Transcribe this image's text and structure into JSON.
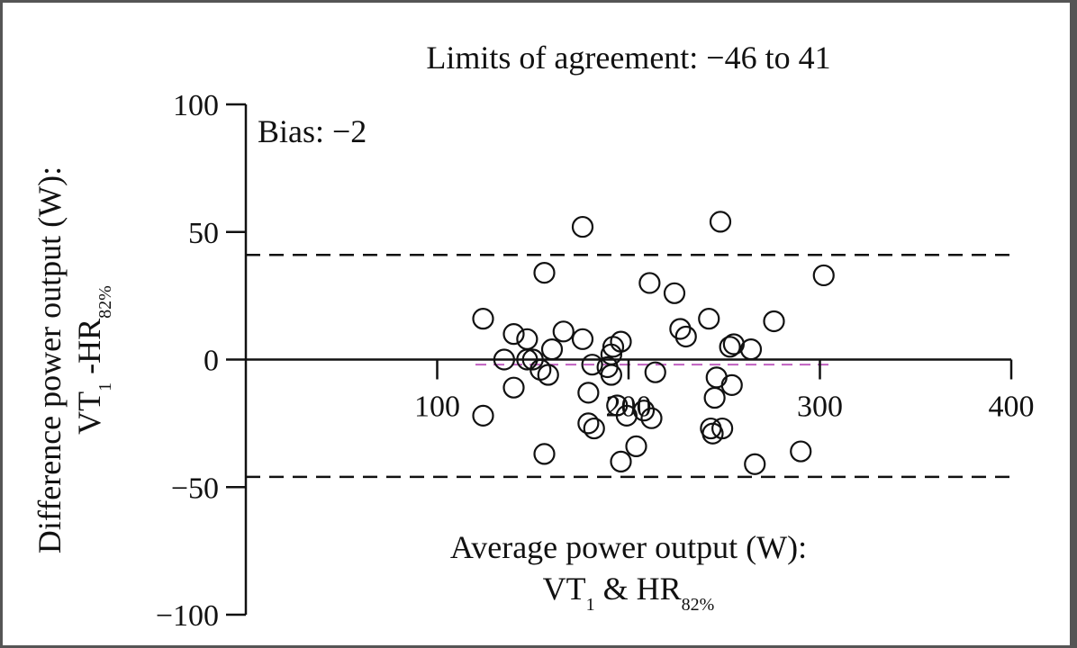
{
  "chart_data": {
    "type": "scatter",
    "title": "Limits of agreement: −46 to 41",
    "bias_label": "Bias: −2",
    "bias": -2,
    "limits": [
      -46,
      41
    ],
    "xlabel_line1": "Average power output (W):",
    "xlabel_line2": {
      "a": "VT",
      "a_sub": "1",
      "b": " & HR",
      "b_sub": "82%"
    },
    "ylabel_line1": "Difference power output (W):",
    "ylabel_line2": {
      "a": "VT",
      "a_sub": "1",
      "b": " -HR",
      "b_sub": "82%"
    },
    "xlim": [
      0,
      400
    ],
    "ylim": [
      -100,
      100
    ],
    "x_ticks": [
      100,
      200,
      300,
      400
    ],
    "x_tick_labels": [
      "100",
      "200",
      "300",
      "400"
    ],
    "y_ticks": [
      -100,
      -50,
      0,
      50,
      100
    ],
    "y_tick_labels": [
      "−100",
      "−50",
      "0",
      "50",
      "100"
    ],
    "colors": {
      "points": "#111111",
      "bias_line": "#c060c0",
      "limit_lines": "#111111"
    },
    "points": [
      {
        "x": 124,
        "y": 16
      },
      {
        "x": 124,
        "y": -22
      },
      {
        "x": 135,
        "y": 0
      },
      {
        "x": 140,
        "y": 10
      },
      {
        "x": 140,
        "y": -11
      },
      {
        "x": 147,
        "y": 8
      },
      {
        "x": 147,
        "y": 0
      },
      {
        "x": 150,
        "y": 0
      },
      {
        "x": 154,
        "y": -4
      },
      {
        "x": 156,
        "y": 34
      },
      {
        "x": 156,
        "y": -37
      },
      {
        "x": 158,
        "y": -6
      },
      {
        "x": 160,
        "y": 4
      },
      {
        "x": 166,
        "y": 11
      },
      {
        "x": 176,
        "y": 52
      },
      {
        "x": 176,
        "y": 8
      },
      {
        "x": 179,
        "y": -13
      },
      {
        "x": 179,
        "y": -25
      },
      {
        "x": 181,
        "y": -2
      },
      {
        "x": 182,
        "y": -27
      },
      {
        "x": 189,
        "y": -3
      },
      {
        "x": 191,
        "y": 2
      },
      {
        "x": 191,
        "y": -6
      },
      {
        "x": 192,
        "y": 5
      },
      {
        "x": 194,
        "y": -18
      },
      {
        "x": 196,
        "y": 7
      },
      {
        "x": 196,
        "y": -40
      },
      {
        "x": 199,
        "y": -22
      },
      {
        "x": 204,
        "y": -34
      },
      {
        "x": 208,
        "y": -20
      },
      {
        "x": 211,
        "y": 30
      },
      {
        "x": 212,
        "y": -23
      },
      {
        "x": 214,
        "y": -5
      },
      {
        "x": 224,
        "y": 26
      },
      {
        "x": 227,
        "y": 12
      },
      {
        "x": 230,
        "y": 9
      },
      {
        "x": 242,
        "y": 16
      },
      {
        "x": 243,
        "y": -27
      },
      {
        "x": 244,
        "y": -29
      },
      {
        "x": 245,
        "y": -15
      },
      {
        "x": 246,
        "y": -7
      },
      {
        "x": 248,
        "y": 54
      },
      {
        "x": 249,
        "y": -27
      },
      {
        "x": 253,
        "y": 5
      },
      {
        "x": 254,
        "y": -10
      },
      {
        "x": 255,
        "y": 6
      },
      {
        "x": 264,
        "y": 4
      },
      {
        "x": 266,
        "y": -41
      },
      {
        "x": 276,
        "y": 15
      },
      {
        "x": 290,
        "y": -36
      },
      {
        "x": 302,
        "y": 33
      }
    ]
  }
}
